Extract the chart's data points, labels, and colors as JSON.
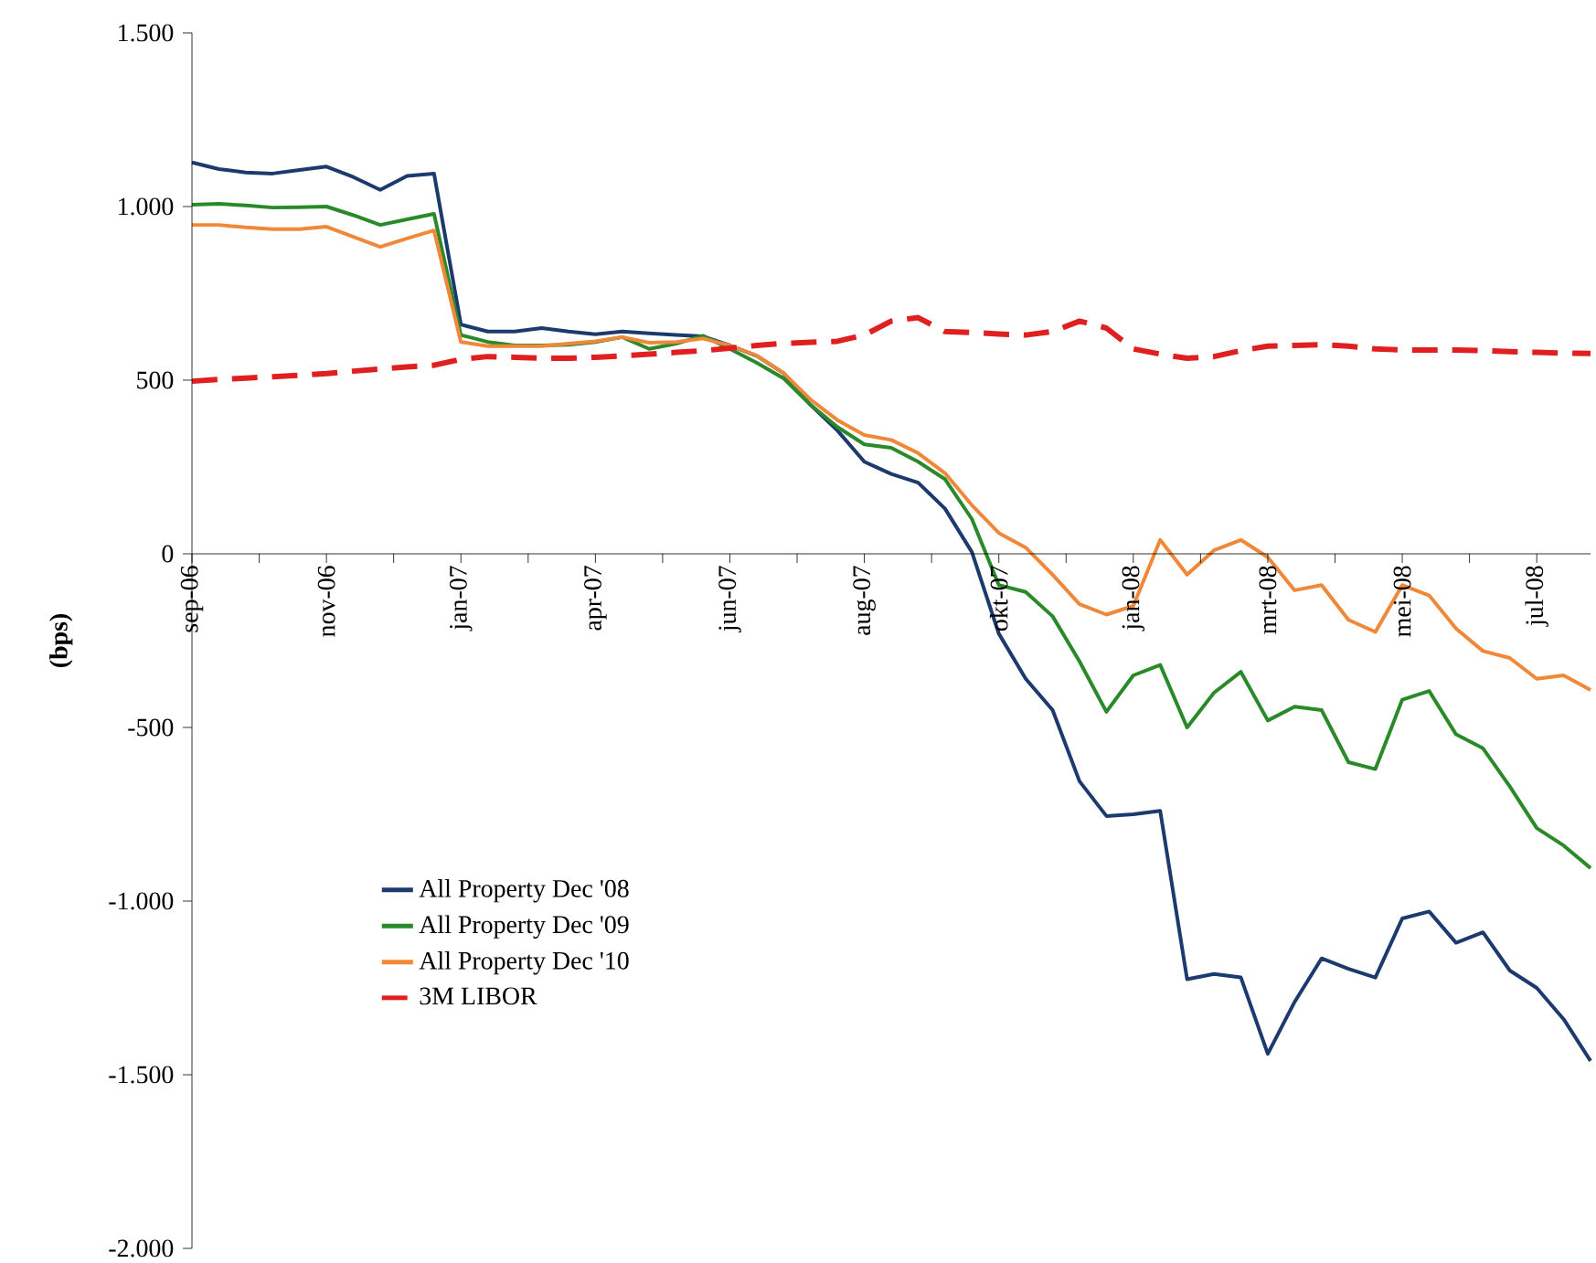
{
  "chart_data": {
    "type": "line",
    "ylabel": "(bps)",
    "categories": [
      "sep-06",
      null,
      null,
      null,
      null,
      "nov-06",
      null,
      null,
      null,
      null,
      "jan-07",
      null,
      null,
      null,
      null,
      "apr-07",
      null,
      null,
      null,
      null,
      "jun-07",
      null,
      null,
      null,
      null,
      "aug-07",
      null,
      null,
      null,
      null,
      "okt-07",
      null,
      null,
      null,
      null,
      "jan-08",
      null,
      null,
      null,
      null,
      "mrt-08",
      null,
      null,
      null,
      null,
      "mei-08",
      null,
      null,
      null,
      null,
      "jul-08",
      null,
      null
    ],
    "ylim": [
      -2000,
      1500
    ],
    "yticks": [
      {
        "value": -2000,
        "label": "-2.000"
      },
      {
        "value": -1500,
        "label": "-1.500"
      },
      {
        "value": -1000,
        "label": "-1.000"
      },
      {
        "value": -500,
        "label": "-500"
      },
      0,
      500,
      {
        "value": 1000,
        "label": "1.000"
      },
      {
        "value": 1500,
        "label": "1.500"
      }
    ],
    "legend": "bottom left",
    "grid": false,
    "marker": "none",
    "series": [
      {
        "name": "All Property Dec '08",
        "color": "#1c3a6e",
        "line_style": "solid",
        "values": [
          1127,
          1108,
          1098,
          1095,
          1105,
          1115,
          1085,
          1048,
          1088,
          1095,
          660,
          640,
          640,
          650,
          640,
          632,
          640,
          635,
          630,
          626,
          600,
          570,
          520,
          429,
          355,
          265,
          230,
          205,
          130,
          5,
          -230,
          -360,
          -450,
          -655,
          -755,
          -750,
          -740,
          -1225,
          -1210,
          -1220,
          -1440,
          -1290,
          -1165,
          -1195,
          -1220,
          -1050,
          -1030,
          -1120,
          -1090,
          -1200,
          -1250,
          -1340,
          -1460
        ]
      },
      {
        "name": "All Property Dec '09",
        "color": "#2a8a2a",
        "line_style": "solid",
        "values": [
          1005,
          1008,
          1003,
          997,
          998,
          1000,
          975,
          947,
          963,
          979,
          630,
          610,
          600,
          600,
          602,
          610,
          624,
          590,
          605,
          628,
          590,
          550,
          505,
          429,
          365,
          315,
          305,
          265,
          215,
          100,
          -90,
          -110,
          -180,
          -310,
          -455,
          -350,
          -320,
          -500,
          -400,
          -340,
          -480,
          -440,
          -450,
          -600,
          -620,
          -420,
          -395,
          -520,
          -560,
          -670,
          -790,
          -840,
          -905
        ]
      },
      {
        "name": "All Property Dec '10",
        "color": "#f0883a",
        "line_style": "solid",
        "values": [
          947,
          947,
          940,
          935,
          935,
          942,
          913,
          884,
          908,
          931,
          610,
          598,
          598,
          598,
          605,
          612,
          624,
          608,
          610,
          620,
          600,
          571,
          520,
          444,
          385,
          342,
          328,
          290,
          232,
          140,
          60,
          18,
          -60,
          -145,
          -175,
          -150,
          40,
          -60,
          10,
          40,
          -10,
          -105,
          -90,
          -190,
          -225,
          -90,
          -120,
          -215,
          -280,
          -300,
          -360,
          -350,
          -392
        ]
      },
      {
        "name": "3M LIBOR",
        "color": "#e02020",
        "line_style": "dashed",
        "values": [
          497,
          502,
          506,
          510,
          514,
          519,
          526,
          532,
          538,
          543,
          560,
          568,
          566,
          563,
          563,
          566,
          570,
          575,
          580,
          585,
          592,
          600,
          606,
          609,
          612,
          630,
          670,
          680,
          640,
          637,
          633,
          630,
          640,
          670,
          650,
          590,
          575,
          563,
          568,
          585,
          598,
          600,
          602,
          598,
          590,
          587,
          587,
          587,
          585,
          582,
          580,
          578,
          577
        ]
      }
    ]
  }
}
